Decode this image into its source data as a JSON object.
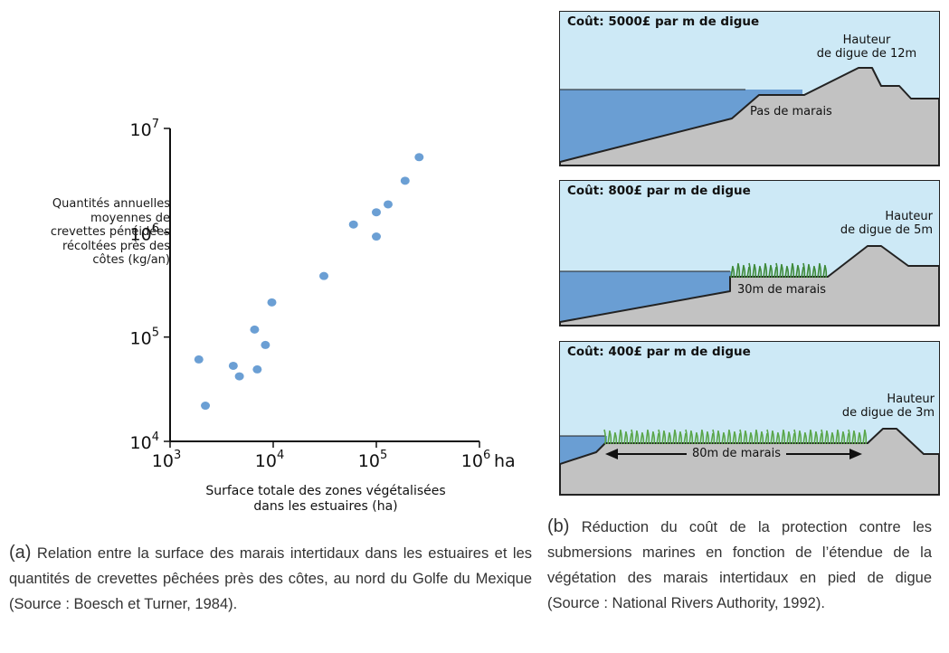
{
  "chart_data": {
    "type": "scatter",
    "title": "",
    "xlabel_lines": [
      "Surface totale des zones végétalisées",
      "dans les estuaires (ha)"
    ],
    "ylabel_lines": [
      "Quantités annuelles",
      "moyennes de",
      "crevettes pénéidées",
      "récoltées près des",
      "côtes (kg/an)"
    ],
    "x_scale": "log",
    "y_scale": "log",
    "xlim": [
      1000,
      1000000
    ],
    "ylim": [
      10000,
      10000000
    ],
    "x_unit": "ha",
    "x_ticks": [
      {
        "base": "10",
        "exp": "3"
      },
      {
        "base": "10",
        "exp": "4"
      },
      {
        "base": "10",
        "exp": "5"
      },
      {
        "base": "10",
        "exp": "6"
      }
    ],
    "y_ticks": [
      {
        "base": "10",
        "exp": "4"
      },
      {
        "base": "10",
        "exp": "5"
      },
      {
        "base": "10",
        "exp": "6"
      },
      {
        "base": "10",
        "exp": "7"
      }
    ],
    "point_color": "#6b9fd4",
    "points": [
      {
        "x": 1900,
        "y": 61000
      },
      {
        "x": 2200,
        "y": 22000
      },
      {
        "x": 4100,
        "y": 53000
      },
      {
        "x": 4700,
        "y": 42000
      },
      {
        "x": 6600,
        "y": 118000
      },
      {
        "x": 7000,
        "y": 49000
      },
      {
        "x": 8400,
        "y": 84000
      },
      {
        "x": 9700,
        "y": 215000
      },
      {
        "x": 31000,
        "y": 385000
      },
      {
        "x": 60000,
        "y": 1200000
      },
      {
        "x": 100000,
        "y": 920000
      },
      {
        "x": 100000,
        "y": 1570000
      },
      {
        "x": 130000,
        "y": 1870000
      },
      {
        "x": 190000,
        "y": 3150000
      },
      {
        "x": 260000,
        "y": 5300000
      }
    ]
  },
  "diagram": {
    "water_color": "#6a9ed3",
    "ground_color": "#c2c2c2",
    "sky_color": "#cde9f6",
    "panels": [
      {
        "cost": "Coût: 5000£ par m de digue",
        "height_lines": [
          "Hauteur",
          "de digue de 12m"
        ],
        "marsh": "Pas de marais"
      },
      {
        "cost": "Coût: 800£ par m de digue",
        "height_lines": [
          "Hauteur",
          "de digue de 5m"
        ],
        "marsh": "30m de marais"
      },
      {
        "cost": "Coût: 400£ par m de digue",
        "height_lines": [
          "Hauteur",
          "de digue de 3m"
        ],
        "marsh": "80m de marais"
      }
    ]
  },
  "captions": {
    "a": {
      "tag": "(a)",
      "text": " Relation entre la surface des marais intertidaux dans les estuaires et les quantités de crevettes pêchées près des côtes, au nord du Golfe du Mexique (Source : Boesch et Turner, 1984)."
    },
    "b": {
      "tag": "(b)",
      "text": " Réduction du coût de la protection contre les submersions marines en fonction de l’étendue de la végétation des marais intertidaux en pied de digue (Source : National Rivers Authority, 1992)."
    }
  }
}
